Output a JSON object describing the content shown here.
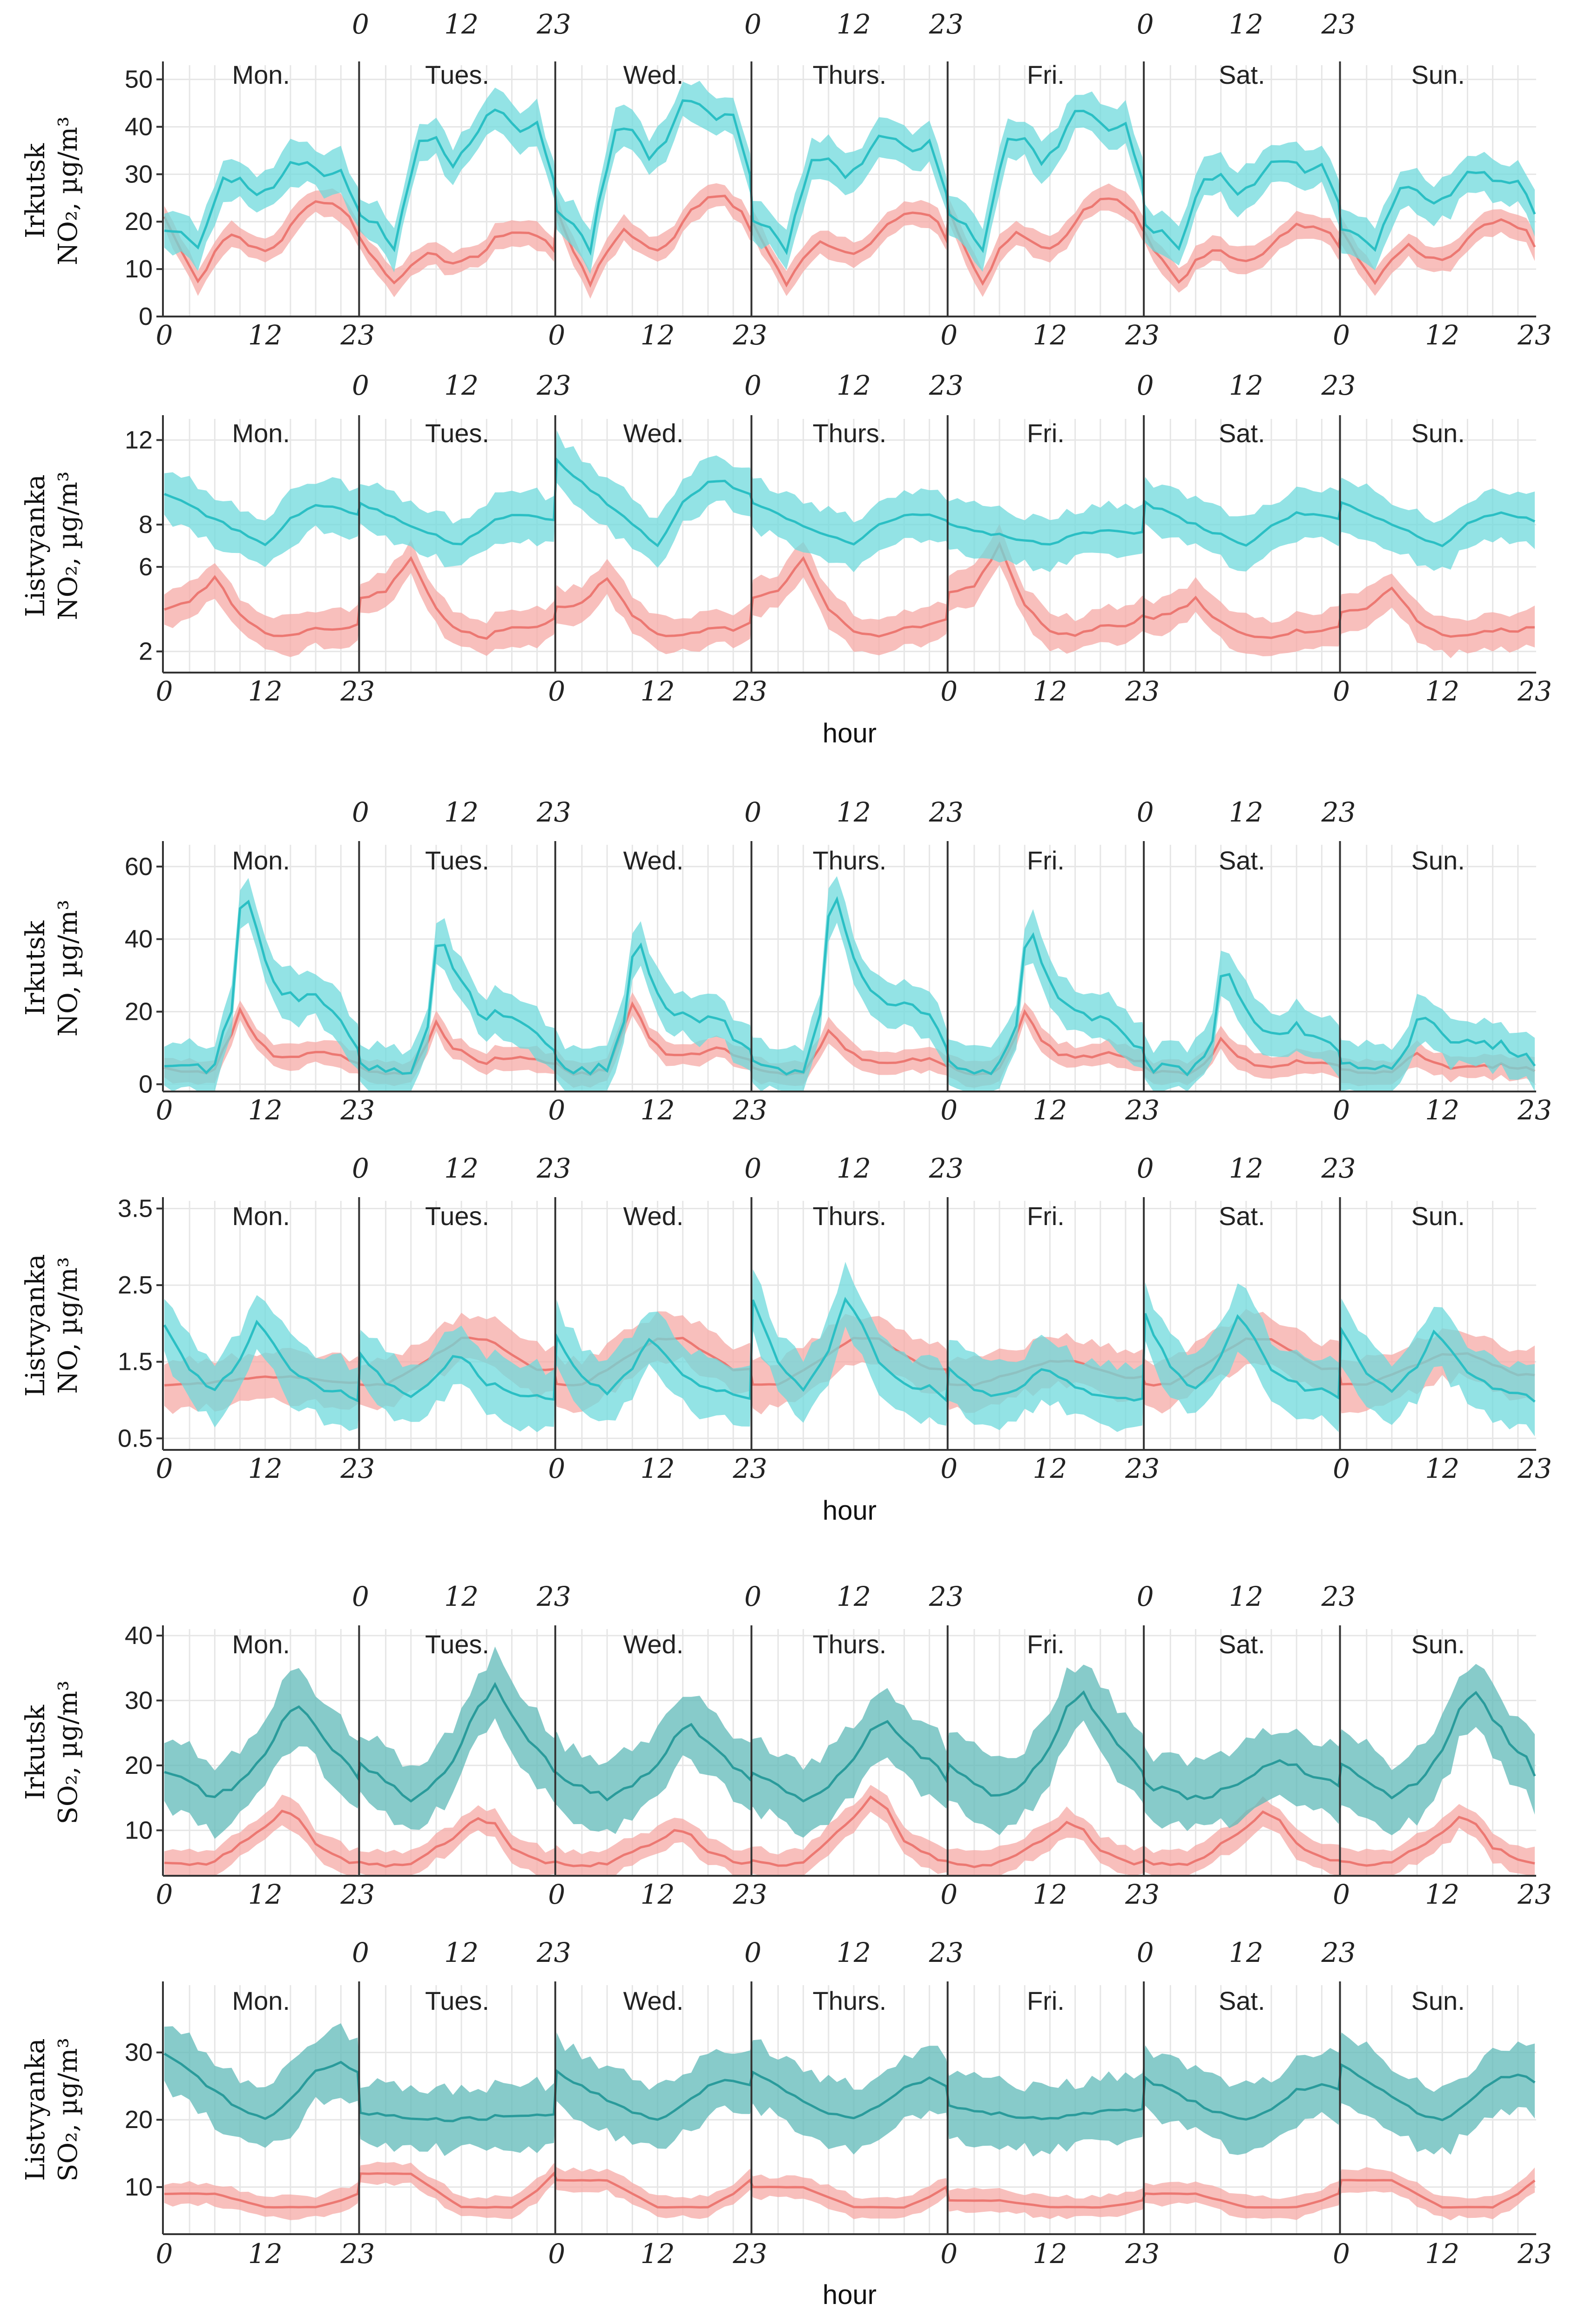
{
  "colors": {
    "no2_series_a": "#2bbfc4",
    "no2_band_a": "#6fd9dc",
    "so2_series_a": "#2a9b9b",
    "so2_band_a": "#5fb9b8",
    "series_b": "#ec7872",
    "band_b": "#f6aaa5",
    "grid": "#e6e6e6",
    "axis": "#333333"
  },
  "chart_data": [
    {
      "type": "line",
      "id": "irkutsk-no2",
      "ylabel": [
        "Irkutsk",
        "NO₂, µg/m³"
      ],
      "xlabel": "",
      "days": [
        "Mon.",
        "Tues.",
        "Wed.",
        "Thurs.",
        "Fri.",
        "Sat.",
        "Sun."
      ],
      "hour_ticks": [
        "0",
        "12",
        "23"
      ],
      "yticks": [
        "0",
        "10",
        "20",
        "30",
        "40",
        "50"
      ],
      "ylim": [
        0,
        53
      ],
      "series_a_shape": [
        [
          0,
          18
        ],
        [
          2,
          17
        ],
        [
          4,
          14
        ],
        [
          5,
          19
        ],
        [
          7,
          27
        ],
        [
          9,
          27
        ],
        [
          11,
          24
        ],
        [
          13,
          26
        ],
        [
          15,
          30
        ],
        [
          17,
          30
        ],
        [
          19,
          28
        ],
        [
          21,
          29
        ],
        [
          23,
          22
        ]
      ],
      "series_b_shape": [
        [
          0,
          18
        ],
        [
          2,
          12
        ],
        [
          4,
          7
        ],
        [
          6,
          12
        ],
        [
          8,
          15
        ],
        [
          10,
          13
        ],
        [
          12,
          12
        ],
        [
          14,
          14
        ],
        [
          16,
          18
        ],
        [
          18,
          20
        ],
        [
          20,
          20
        ],
        [
          22,
          18
        ],
        [
          23,
          15
        ]
      ],
      "series_a_peaks": [
        32,
        43,
        45,
        38,
        43,
        33,
        30
      ],
      "series_b_peaks": [
        24,
        18,
        25,
        22,
        25,
        19,
        20
      ],
      "band_a": 4,
      "band_b": 2.5,
      "grid": true
    },
    {
      "type": "line",
      "id": "listvyanka-no2",
      "ylabel": [
        "Listvyanka",
        "NO₂, µg/m³"
      ],
      "xlabel": "hour",
      "days": [
        "Mon.",
        "Tues.",
        "Wed.",
        "Thurs.",
        "Fri.",
        "Sat.",
        "Sun."
      ],
      "hour_ticks": [
        "0",
        "12",
        "23"
      ],
      "yticks": [
        "2",
        "6",
        "8",
        "12"
      ],
      "ylim": [
        1,
        13
      ],
      "series_a_shape": [
        [
          0,
          9
        ],
        [
          3,
          8.5
        ],
        [
          6,
          8
        ],
        [
          9,
          7.5
        ],
        [
          12,
          7
        ],
        [
          15,
          8
        ],
        [
          18,
          8.5
        ],
        [
          20,
          8.5
        ],
        [
          23,
          8.2
        ]
      ],
      "series_b_shape": [
        [
          0,
          3.8
        ],
        [
          3,
          4
        ],
        [
          6,
          5
        ],
        [
          9,
          3.5
        ],
        [
          12,
          2.8
        ],
        [
          15,
          2.7
        ],
        [
          18,
          3
        ],
        [
          21,
          3
        ],
        [
          23,
          3.2
        ]
      ],
      "series_a_peaks": [
        9.5,
        9,
        11,
        9,
        8,
        9,
        9
      ],
      "series_b_peaks": [
        5.5,
        6.5,
        5.5,
        6.5,
        7,
        4.5,
        5
      ],
      "band_a": 1.1,
      "band_b": 0.8,
      "grid": true
    },
    {
      "type": "line",
      "id": "irkutsk-no",
      "ylabel": [
        "Irkutsk",
        "NO, µg/m³"
      ],
      "xlabel": "",
      "days": [
        "Mon.",
        "Tues.",
        "Wed.",
        "Thurs.",
        "Fri.",
        "Sat.",
        "Sun."
      ],
      "hour_ticks": [
        "0",
        "12",
        "23"
      ],
      "yticks": [
        "0",
        "20",
        "40",
        "60"
      ],
      "ylim": [
        -2,
        66
      ],
      "series_a_shape": [
        [
          0,
          6
        ],
        [
          2,
          4
        ],
        [
          4,
          4
        ],
        [
          6,
          5
        ],
        [
          8,
          20
        ],
        [
          9,
          45
        ],
        [
          10,
          48
        ],
        [
          12,
          32
        ],
        [
          14,
          24
        ],
        [
          16,
          22
        ],
        [
          18,
          23
        ],
        [
          20,
          20
        ],
        [
          22,
          14
        ],
        [
          23,
          10
        ]
      ],
      "series_b_shape": [
        [
          0,
          5
        ],
        [
          2,
          3
        ],
        [
          4,
          3
        ],
        [
          6,
          4
        ],
        [
          8,
          14
        ],
        [
          9,
          20
        ],
        [
          11,
          12
        ],
        [
          13,
          8
        ],
        [
          15,
          7
        ],
        [
          17,
          8
        ],
        [
          19,
          9
        ],
        [
          21,
          8
        ],
        [
          23,
          6
        ]
      ],
      "series_a_peaks": [
        50,
        40,
        37,
        50,
        40,
        30,
        20
      ],
      "series_b_peaks": [
        20,
        17,
        22,
        15,
        20,
        12,
        9
      ],
      "band_a": 6,
      "band_b": 3,
      "grid": true
    },
    {
      "type": "line",
      "id": "listvyanka-no",
      "ylabel": [
        "Listvyanka",
        "NO, µg/m³"
      ],
      "xlabel": "hour",
      "days": [
        "Mon.",
        "Tues.",
        "Wed.",
        "Thurs.",
        "Fri.",
        "Sat.",
        "Sun."
      ],
      "hour_ticks": [
        "0",
        "12",
        "23"
      ],
      "yticks": [
        "0.5",
        "1.5",
        "2.5",
        "3.5"
      ],
      "ylim": [
        0.35,
        3.6
      ],
      "series_a_shape": [
        [
          0,
          1.8
        ],
        [
          3,
          1.3
        ],
        [
          6,
          1.1
        ],
        [
          9,
          1.4
        ],
        [
          11,
          1.8
        ],
        [
          13,
          1.6
        ],
        [
          15,
          1.3
        ],
        [
          17,
          1.2
        ],
        [
          19,
          1.1
        ],
        [
          21,
          1.1
        ],
        [
          23,
          1.0
        ]
      ],
      "series_b_shape": [
        [
          0,
          1.2
        ],
        [
          3,
          1.2
        ],
        [
          6,
          1.3
        ],
        [
          9,
          1.4
        ],
        [
          12,
          1.5
        ],
        [
          15,
          1.5
        ],
        [
          18,
          1.4
        ],
        [
          21,
          1.3
        ],
        [
          23,
          1.3
        ]
      ],
      "series_a_peaks": [
        2.0,
        1.6,
        1.8,
        2.3,
        1.4,
        2.1,
        1.9
      ],
      "series_b_peaks": [
        1.3,
        1.8,
        1.8,
        1.8,
        1.5,
        1.8,
        1.6
      ],
      "band_a": 0.38,
      "band_b": 0.3,
      "grid": true
    },
    {
      "type": "line",
      "id": "irkutsk-so2",
      "ylabel": [
        "Irkutsk",
        "SO₂, µg/m³"
      ],
      "xlabel": "",
      "days": [
        "Mon.",
        "Tues.",
        "Wed.",
        "Thurs.",
        "Fri.",
        "Sat.",
        "Sun."
      ],
      "hour_ticks": [
        "0",
        "12",
        "23"
      ],
      "yticks": [
        "10",
        "20",
        "30",
        "40"
      ],
      "ylim": [
        3,
        41
      ],
      "series_a_shape": [
        [
          0,
          19
        ],
        [
          3,
          17
        ],
        [
          6,
          15
        ],
        [
          9,
          17
        ],
        [
          12,
          21
        ],
        [
          14,
          26
        ],
        [
          16,
          28
        ],
        [
          18,
          25
        ],
        [
          20,
          22
        ],
        [
          22,
          20
        ],
        [
          23,
          18
        ]
      ],
      "series_b_shape": [
        [
          0,
          5
        ],
        [
          3,
          4.5
        ],
        [
          6,
          5
        ],
        [
          9,
          7
        ],
        [
          12,
          9
        ],
        [
          14,
          11
        ],
        [
          16,
          10
        ],
        [
          18,
          7
        ],
        [
          20,
          6
        ],
        [
          22,
          5
        ],
        [
          23,
          5
        ]
      ],
      "series_a_peaks": [
        29,
        32,
        26,
        27,
        31,
        21,
        31
      ],
      "series_b_peaks": [
        13,
        12,
        10,
        15,
        11,
        13,
        12
      ],
      "band_a": 5,
      "band_b": 2,
      "grid": true
    },
    {
      "type": "line",
      "id": "listvyanka-so2",
      "ylabel": [
        "Listvyanka",
        "SO₂, µg/m³"
      ],
      "xlabel": "hour",
      "days": [
        "Mon.",
        "Tues.",
        "Wed.",
        "Thurs.",
        "Fri.",
        "Sat.",
        "Sun."
      ],
      "hour_ticks": [
        "0",
        "12",
        "23"
      ],
      "yticks": [
        "10",
        "20",
        "30"
      ],
      "ylim": [
        3,
        40
      ],
      "series_a_shape": [
        [
          0,
          27
        ],
        [
          3,
          25
        ],
        [
          6,
          23
        ],
        [
          9,
          21
        ],
        [
          12,
          20
        ],
        [
          15,
          22
        ],
        [
          18,
          25
        ],
        [
          21,
          26
        ],
        [
          23,
          25
        ]
      ],
      "series_b_shape": [
        [
          0,
          8
        ],
        [
          3,
          8
        ],
        [
          6,
          8
        ],
        [
          9,
          7.5
        ],
        [
          12,
          7
        ],
        [
          15,
          7
        ],
        [
          18,
          7
        ],
        [
          21,
          7.5
        ],
        [
          23,
          8
        ]
      ],
      "series_a_peaks": [
        30,
        21,
        27,
        27,
        22,
        26,
        28
      ],
      "series_b_peaks": [
        9,
        12,
        11,
        10,
        8,
        9,
        11
      ],
      "band_a": 4.5,
      "band_b": 1.5,
      "grid": true
    }
  ]
}
